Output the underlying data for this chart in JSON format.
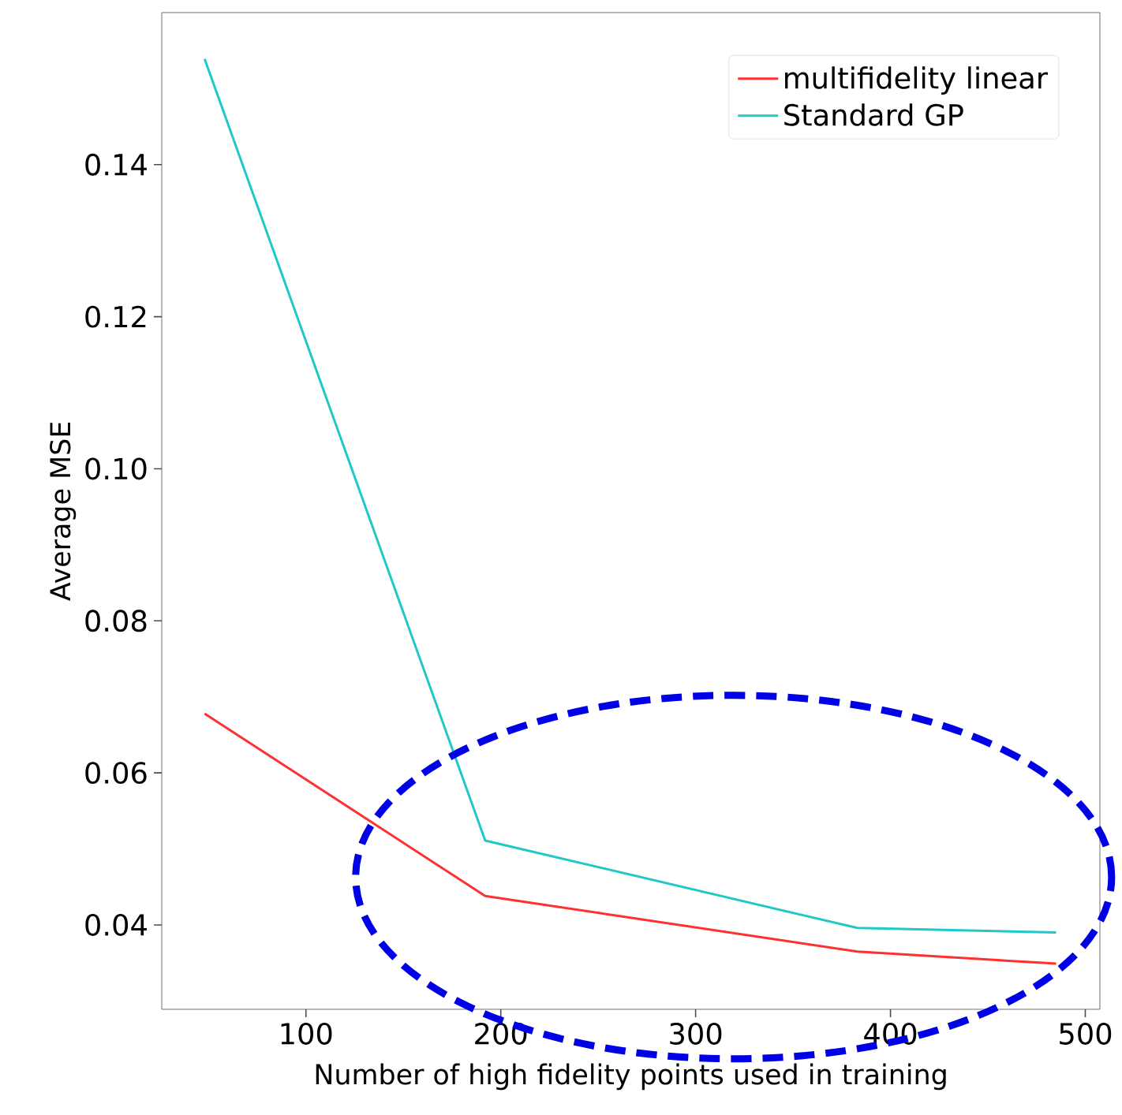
{
  "chart_data": {
    "type": "line",
    "xlabel": "Number of high fidelity points used in training",
    "ylabel": "Average MSE",
    "x": [
      48,
      192,
      383,
      485
    ],
    "series": [
      {
        "name": "multifidelity linear",
        "color": "#ff3030",
        "values": [
          0.0678,
          0.0438,
          0.0365,
          0.0349
        ]
      },
      {
        "name": "Standard GP",
        "color": "#20c8c8",
        "values": [
          0.1539,
          0.0511,
          0.0396,
          0.039
        ]
      }
    ],
    "xlim": [
      26,
      507.5
    ],
    "ylim": [
      0.0289,
      0.16
    ],
    "xticks": [
      100,
      200,
      300,
      400,
      500
    ],
    "yticks": [
      0.04,
      0.06,
      0.08,
      {
        "value": 0.1,
        "label": "0.10"
      },
      0.12,
      0.14
    ],
    "legend": "top right"
  }
}
